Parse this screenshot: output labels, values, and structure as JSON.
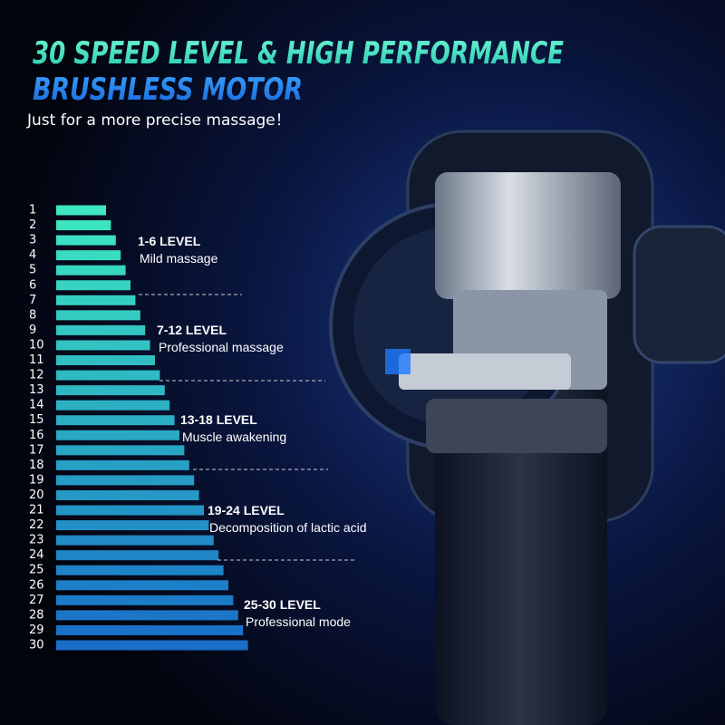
{
  "header": {
    "title_line1": "30 SPEED LEVEL & HIGH PERFORMANCE",
    "title_line2": "BRUSHLESS MOTOR",
    "subtitle": "Just for a more precise massage！"
  },
  "levels": [
    1,
    2,
    3,
    4,
    5,
    6,
    7,
    8,
    9,
    10,
    11,
    12,
    13,
    14,
    15,
    16,
    17,
    18,
    19,
    20,
    21,
    22,
    23,
    24,
    25,
    26,
    27,
    28,
    29,
    30
  ],
  "groups": [
    {
      "range": "1-6 LEVEL",
      "description": "Mild massage"
    },
    {
      "range": "7-12 LEVEL",
      "description": "Professional massage"
    },
    {
      "range": "13-18 LEVEL",
      "description": "Muscle awakening"
    },
    {
      "range": "19-24 LEVEL",
      "description": "Decomposition of lactic acid"
    },
    {
      "range": "25-30 LEVEL",
      "description": "Professional mode"
    }
  ]
}
